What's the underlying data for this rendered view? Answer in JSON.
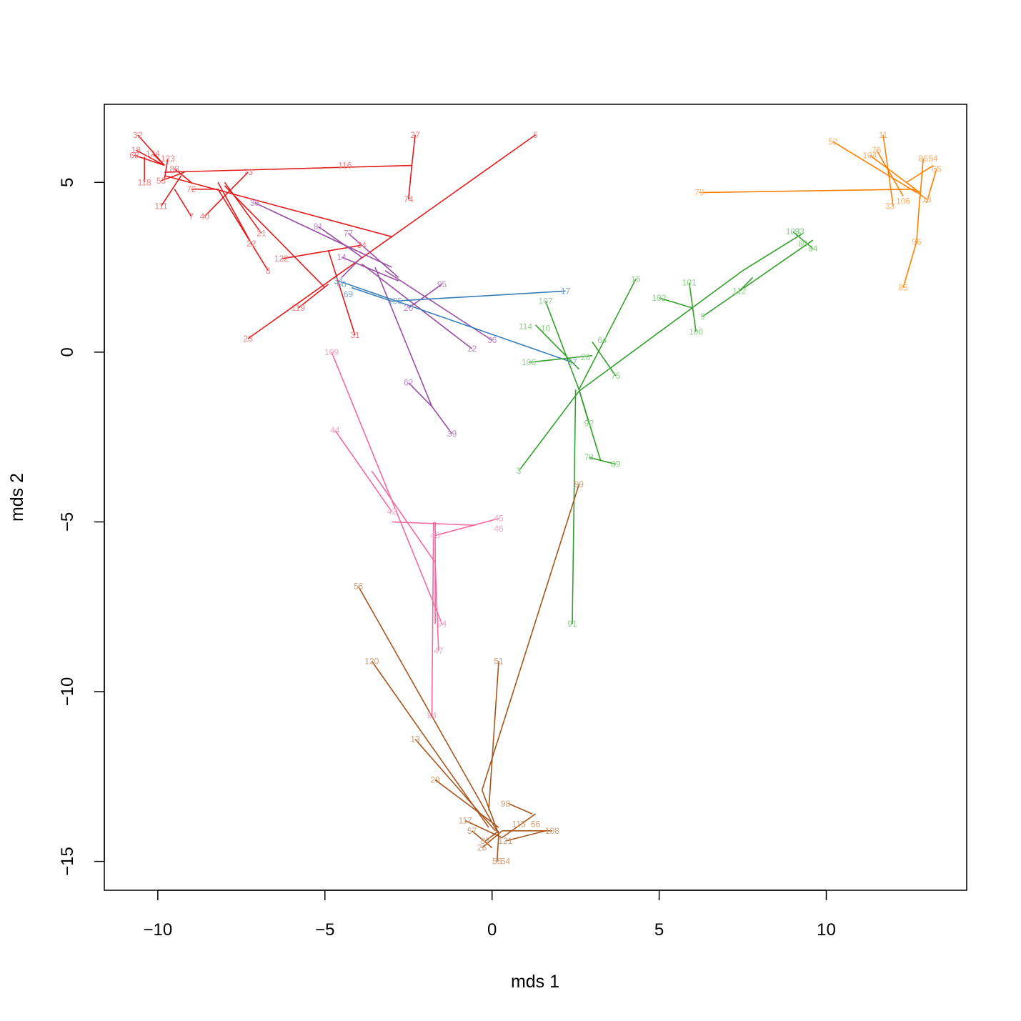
{
  "chart_data": {
    "type": "scatter",
    "title": "",
    "xlabel": "mds 1",
    "ylabel": "mds 2",
    "xlim": [
      -11.6,
      14.2
    ],
    "ylim": [
      -15.85,
      7.3
    ],
    "xticks": [
      -10,
      -5,
      0,
      5,
      10
    ],
    "yticks": [
      -15,
      -10,
      -5,
      0,
      5
    ],
    "xtick_labels": [
      "−10",
      "−5",
      "0",
      "5",
      "10"
    ],
    "ytick_labels": [
      "−15",
      "−10",
      "−5",
      "0",
      "5"
    ],
    "grid": false,
    "legend": "none",
    "groups": [
      {
        "color": "#e31a1c",
        "label_color": "#f08080",
        "points": [
          {
            "label": "32",
            "x": -10.6,
            "y": 6.4
          },
          {
            "label": "18",
            "x": -10.65,
            "y": 5.95
          },
          {
            "label": "124",
            "x": -10.15,
            "y": 5.85
          },
          {
            "label": "123",
            "x": -9.7,
            "y": 5.7
          },
          {
            "label": "68",
            "x": -10.7,
            "y": 5.8
          },
          {
            "label": "118",
            "x": -10.4,
            "y": 5.0
          },
          {
            "label": "53",
            "x": -9.9,
            "y": 5.05
          },
          {
            "label": "88",
            "x": -9.5,
            "y": 5.4
          },
          {
            "label": "72",
            "x": -9.0,
            "y": 4.8
          },
          {
            "label": "111",
            "x": -9.9,
            "y": 4.3
          },
          {
            "label": "7",
            "x": -9.0,
            "y": 4.0
          },
          {
            "label": "40",
            "x": -8.6,
            "y": 4.0
          },
          {
            "label": "73",
            "x": -7.3,
            "y": 5.3
          },
          {
            "label": "116",
            "x": -4.4,
            "y": 5.5
          },
          {
            "label": "27",
            "x": -2.3,
            "y": 6.4
          },
          {
            "label": "74",
            "x": -2.5,
            "y": 4.5
          },
          {
            "label": "5",
            "x": 1.3,
            "y": 6.4
          },
          {
            "label": "21",
            "x": -6.9,
            "y": 3.5
          },
          {
            "label": "22",
            "x": -7.2,
            "y": 3.2
          },
          {
            "label": "8",
            "x": -6.7,
            "y": 2.4
          },
          {
            "label": "122",
            "x": -6.3,
            "y": 2.75
          },
          {
            "label": "34",
            "x": -3.9,
            "y": 3.15
          },
          {
            "label": "119",
            "x": -5.8,
            "y": 1.3
          },
          {
            "label": "31",
            "x": -4.1,
            "y": 0.5
          },
          {
            "label": "23",
            "x": -7.3,
            "y": 0.4
          }
        ],
        "segments": [
          [
            -10.6,
            6.4,
            -9.8,
            5.5
          ],
          [
            -10.65,
            5.95,
            -9.8,
            5.5
          ],
          [
            -10.7,
            5.8,
            -9.8,
            5.5
          ],
          [
            -10.15,
            5.85,
            -9.8,
            5.5
          ],
          [
            -9.7,
            5.7,
            -9.8,
            5.1
          ],
          [
            -10.4,
            5.0,
            -10.4,
            5.75
          ],
          [
            -9.9,
            5.05,
            -9.2,
            5.3
          ],
          [
            -9.5,
            5.4,
            -9.0,
            5.0
          ],
          [
            -9.0,
            4.8,
            -8.2,
            4.8
          ],
          [
            -9.9,
            4.3,
            -9.3,
            5.2
          ],
          [
            -9.0,
            4.0,
            -9.5,
            4.8
          ],
          [
            -8.6,
            4.0,
            -7.3,
            5.3
          ],
          [
            -9.8,
            5.3,
            -2.4,
            5.5
          ],
          [
            -2.3,
            6.4,
            -2.4,
            5.5
          ],
          [
            -2.5,
            4.5,
            -2.4,
            5.5
          ],
          [
            -9.8,
            5.2,
            -3.0,
            3.4
          ],
          [
            -8.0,
            5.0,
            -6.9,
            3.5
          ],
          [
            -8.2,
            5.0,
            -7.2,
            3.2
          ],
          [
            -8.2,
            4.8,
            -6.7,
            2.4
          ],
          [
            -6.3,
            2.75,
            -3.9,
            3.15
          ],
          [
            -8.0,
            4.9,
            -5.0,
            1.9
          ],
          [
            -4.9,
            3.0,
            -4.1,
            0.5
          ],
          [
            -7.3,
            0.4,
            1.3,
            6.4
          ],
          [
            -5.8,
            1.3,
            -4.9,
            2.0
          ]
        ]
      },
      {
        "color": "#984ea3",
        "label_color": "#c085c8",
        "points": [
          {
            "label": "35",
            "x": -7.1,
            "y": 4.4
          },
          {
            "label": "81",
            "x": -5.2,
            "y": 3.7
          },
          {
            "label": "77",
            "x": -4.3,
            "y": 3.5
          },
          {
            "label": "14",
            "x": -4.5,
            "y": 2.8
          },
          {
            "label": "95",
            "x": -1.5,
            "y": 2.0
          },
          {
            "label": "20",
            "x": -2.5,
            "y": 1.3
          },
          {
            "label": "12",
            "x": -0.6,
            "y": 0.1
          },
          {
            "label": "36",
            "x": 0.0,
            "y": 0.35
          },
          {
            "label": "62",
            "x": -2.5,
            "y": -0.9
          },
          {
            "label": "39",
            "x": -1.2,
            "y": -2.4
          }
        ],
        "segments": [
          [
            -7.1,
            4.4,
            -3.0,
            2.5
          ],
          [
            -5.2,
            3.7,
            -3.9,
            2.8
          ],
          [
            -4.3,
            3.5,
            -2.8,
            2.2
          ],
          [
            -4.5,
            2.8,
            -2.8,
            2.1
          ],
          [
            -3.9,
            2.6,
            -0.6,
            0.1
          ],
          [
            -3.2,
            2.4,
            0.0,
            0.35
          ],
          [
            -1.5,
            2.0,
            -2.5,
            1.3
          ],
          [
            -3.5,
            2.5,
            -1.8,
            -1.6
          ],
          [
            -2.5,
            -0.9,
            -1.8,
            -1.6
          ],
          [
            -1.8,
            -1.6,
            -1.2,
            -2.4
          ],
          [
            -4.5,
            2.2,
            -3.9,
            2.8
          ]
        ]
      },
      {
        "color": "#377eb8",
        "label_color": "#7fa8d0",
        "points": [
          {
            "label": "17",
            "x": 2.2,
            "y": 1.8
          },
          {
            "label": "69",
            "x": -4.3,
            "y": 1.7
          },
          {
            "label": "105",
            "x": -2.9,
            "y": 1.5
          },
          {
            "label": "34",
            "x": -4.6,
            "y": 2.1
          },
          {
            "label": "60",
            "x": -4.5,
            "y": 2.0
          },
          {
            "label": "37",
            "x": 2.4,
            "y": -0.3
          }
        ],
        "segments": [
          [
            -4.6,
            2.1,
            2.4,
            -0.3
          ],
          [
            -4.2,
            1.9,
            -3.0,
            1.5
          ],
          [
            -3.0,
            1.5,
            2.2,
            1.8
          ]
        ]
      },
      {
        "color": "#33a02c",
        "label_color": "#8fd18a",
        "points": [
          {
            "label": "16",
            "x": 4.3,
            "y": 2.15
          },
          {
            "label": "107",
            "x": 1.6,
            "y": 1.5
          },
          {
            "label": "114",
            "x": 1.0,
            "y": 0.75
          },
          {
            "label": "10",
            "x": 1.6,
            "y": 0.7
          },
          {
            "label": "106",
            "x": 1.1,
            "y": -0.3
          },
          {
            "label": "64",
            "x": 3.3,
            "y": 0.35
          },
          {
            "label": "28",
            "x": 2.8,
            "y": -0.15
          },
          {
            "label": "75",
            "x": 3.7,
            "y": -0.7
          },
          {
            "label": "92",
            "x": 2.9,
            "y": -2.1
          },
          {
            "label": "78",
            "x": 2.9,
            "y": -3.1
          },
          {
            "label": "89",
            "x": 3.7,
            "y": -3.3
          },
          {
            "label": "3",
            "x": 0.8,
            "y": -3.5
          },
          {
            "label": "91",
            "x": 2.4,
            "y": -8.0
          },
          {
            "label": "101",
            "x": 5.9,
            "y": 2.05
          },
          {
            "label": "102",
            "x": 5.0,
            "y": 1.6
          },
          {
            "label": "9",
            "x": 6.3,
            "y": 1.05
          },
          {
            "label": "100",
            "x": 6.1,
            "y": 0.6
          },
          {
            "label": "112",
            "x": 7.4,
            "y": 1.8
          },
          {
            "label": "103",
            "x": 9.0,
            "y": 3.55
          },
          {
            "label": "93",
            "x": 9.2,
            "y": 3.55
          },
          {
            "label": "80",
            "x": 9.3,
            "y": 3.2
          },
          {
            "label": "94",
            "x": 9.6,
            "y": 3.05
          }
        ],
        "segments": [
          [
            1.6,
            1.5,
            2.6,
            -1.1
          ],
          [
            1.3,
            0.8,
            2.6,
            -0.5
          ],
          [
            1.1,
            -0.3,
            3.0,
            -0.1
          ],
          [
            2.6,
            -1.1,
            4.3,
            2.15
          ],
          [
            3.0,
            0.3,
            3.7,
            -0.7
          ],
          [
            2.6,
            -1.1,
            2.9,
            -2.1
          ],
          [
            2.6,
            -1.1,
            3.25,
            -3.2
          ],
          [
            2.9,
            -3.1,
            3.7,
            -3.3
          ],
          [
            2.5,
            -1.1,
            2.4,
            -8.0
          ],
          [
            0.8,
            -3.5,
            2.6,
            -1.15
          ],
          [
            2.6,
            -1.15,
            7.5,
            2.4
          ],
          [
            5.0,
            1.6,
            6.0,
            1.3
          ],
          [
            5.9,
            2.05,
            6.1,
            0.6
          ],
          [
            6.3,
            1.05,
            9.6,
            3.3
          ],
          [
            7.5,
            2.4,
            9.3,
            3.5
          ],
          [
            7.4,
            1.8,
            7.8,
            2.2
          ],
          [
            9.0,
            3.55,
            9.6,
            3.05
          ]
        ]
      },
      {
        "color": "#ff7f00",
        "label_color": "#ffb06a",
        "points": [
          {
            "label": "52",
            "x": 10.2,
            "y": 6.2
          },
          {
            "label": "11",
            "x": 11.7,
            "y": 6.4
          },
          {
            "label": "76",
            "x": 11.5,
            "y": 5.95
          },
          {
            "label": "104",
            "x": 11.3,
            "y": 5.8
          },
          {
            "label": "86",
            "x": 12.9,
            "y": 5.7
          },
          {
            "label": "54",
            "x": 13.2,
            "y": 5.7
          },
          {
            "label": "65",
            "x": 13.3,
            "y": 5.4
          },
          {
            "label": "79",
            "x": 6.2,
            "y": 4.7
          },
          {
            "label": "33",
            "x": 11.9,
            "y": 4.3
          },
          {
            "label": "106",
            "x": 12.3,
            "y": 4.45
          },
          {
            "label": "18",
            "x": 13.0,
            "y": 4.5
          },
          {
            "label": "96",
            "x": 12.7,
            "y": 3.25
          },
          {
            "label": "85",
            "x": 12.3,
            "y": 1.9
          }
        ],
        "segments": [
          [
            10.2,
            6.2,
            12.7,
            4.7
          ],
          [
            11.7,
            6.4,
            12.0,
            4.3
          ],
          [
            11.5,
            5.95,
            12.3,
            4.6
          ],
          [
            11.3,
            5.8,
            12.8,
            4.7
          ],
          [
            12.9,
            5.7,
            12.8,
            4.5
          ],
          [
            13.2,
            5.5,
            12.4,
            5.0
          ],
          [
            13.3,
            5.4,
            13.0,
            4.4
          ],
          [
            6.2,
            4.7,
            12.6,
            4.8
          ],
          [
            12.6,
            4.8,
            13.0,
            4.5
          ],
          [
            12.8,
            4.6,
            12.7,
            3.25
          ],
          [
            12.7,
            3.25,
            12.3,
            1.9
          ]
        ]
      },
      {
        "color": "#f768a1",
        "label_color": "#f5a3c8",
        "points": [
          {
            "label": "109",
            "x": -4.8,
            "y": 0.0
          },
          {
            "label": "44",
            "x": -4.7,
            "y": -2.3
          },
          {
            "label": "42",
            "x": -3.0,
            "y": -4.7
          },
          {
            "label": "45",
            "x": 0.2,
            "y": -4.9
          },
          {
            "label": "46",
            "x": 0.2,
            "y": -5.2
          },
          {
            "label": "43",
            "x": -1.7,
            "y": -5.4
          },
          {
            "label": "94",
            "x": -1.5,
            "y": -8.0
          },
          {
            "label": "47",
            "x": -1.6,
            "y": -8.8
          },
          {
            "label": "84",
            "x": -1.8,
            "y": -10.7
          }
        ],
        "segments": [
          [
            -4.8,
            0.0,
            -1.5,
            -8.0
          ],
          [
            -4.7,
            -2.3,
            -3.0,
            -4.7
          ],
          [
            -3.6,
            -3.5,
            -1.7,
            -6.2
          ],
          [
            -3.0,
            -5.0,
            -0.5,
            -5.1
          ],
          [
            -1.7,
            -5.4,
            0.2,
            -4.9
          ],
          [
            -1.7,
            -5.0,
            -1.7,
            -8.0
          ],
          [
            -1.7,
            -6.2,
            -1.6,
            -8.8
          ],
          [
            -1.75,
            -5.0,
            -1.8,
            -10.7
          ]
        ]
      },
      {
        "color": "#a6561c",
        "label_color": "#d0a07a",
        "points": [
          {
            "label": "56",
            "x": -4.0,
            "y": -6.9
          },
          {
            "label": "120",
            "x": -3.6,
            "y": -9.1
          },
          {
            "label": "51",
            "x": 0.2,
            "y": -9.1
          },
          {
            "label": "99",
            "x": 2.6,
            "y": -3.9
          },
          {
            "label": "13",
            "x": -2.3,
            "y": -11.4
          },
          {
            "label": "29",
            "x": -1.7,
            "y": -12.6
          },
          {
            "label": "98",
            "x": 0.4,
            "y": -13.3
          },
          {
            "label": "117",
            "x": -0.8,
            "y": -13.8
          },
          {
            "label": "57",
            "x": -0.6,
            "y": -14.1
          },
          {
            "label": "115",
            "x": 0.8,
            "y": -13.9
          },
          {
            "label": "66",
            "x": 1.3,
            "y": -13.9
          },
          {
            "label": "108",
            "x": 1.8,
            "y": -14.1
          },
          {
            "label": "87",
            "x": -0.2,
            "y": -14.4
          },
          {
            "label": "121",
            "x": 0.4,
            "y": -14.4
          },
          {
            "label": "26",
            "x": -0.3,
            "y": -14.6
          },
          {
            "label": "55",
            "x": 0.15,
            "y": -15.0
          },
          {
            "label": "54",
            "x": 0.4,
            "y": -15.0
          }
        ],
        "segments": [
          [
            -4.0,
            -6.9,
            0.2,
            -14.2
          ],
          [
            -3.6,
            -9.1,
            -0.1,
            -14.0
          ],
          [
            -2.3,
            -11.4,
            0.1,
            -14.1
          ],
          [
            -1.7,
            -12.6,
            0.2,
            -14.0
          ],
          [
            0.2,
            -9.1,
            -0.1,
            -13.5
          ],
          [
            2.6,
            -3.9,
            -0.3,
            -12.9
          ],
          [
            -0.3,
            -12.9,
            0.2,
            -14.2
          ],
          [
            0.5,
            -13.3,
            1.2,
            -13.6
          ],
          [
            -0.8,
            -13.8,
            0.3,
            -14.3
          ],
          [
            0.3,
            -14.3,
            1.3,
            -13.6
          ],
          [
            0.3,
            -14.1,
            1.8,
            -14.1
          ],
          [
            -0.2,
            -14.4,
            0.2,
            -14.1
          ],
          [
            0.4,
            -14.4,
            1.6,
            -14.1
          ],
          [
            -0.3,
            -14.6,
            0.3,
            -14.1
          ],
          [
            0.2,
            -14.2,
            0.15,
            -15.0
          ],
          [
            -0.6,
            -14.1,
            0.0,
            -14.6
          ]
        ]
      }
    ]
  }
}
